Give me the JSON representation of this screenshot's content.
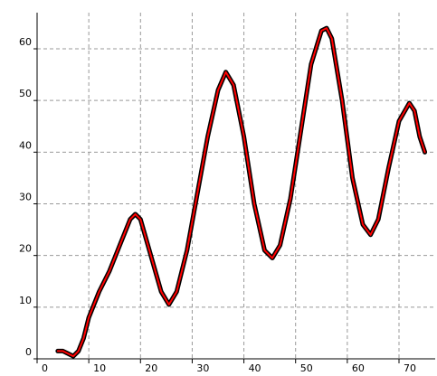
{
  "chart_data": {
    "type": "line",
    "x": [
      4,
      5,
      6,
      7,
      8,
      9,
      10,
      12,
      14,
      16,
      18,
      19,
      20,
      22,
      24,
      25.5,
      27,
      29,
      31,
      33,
      35,
      36.5,
      38,
      40,
      42,
      44,
      45.5,
      47,
      49,
      51,
      53,
      55,
      56,
      57,
      59,
      61,
      63,
      64.5,
      66,
      68,
      70,
      72,
      73,
      74,
      75
    ],
    "series": [
      {
        "color": "#000000",
        "values": [
          1.5,
          1.5,
          1,
          0.5,
          1.5,
          4,
          8,
          13,
          17,
          22,
          27,
          28,
          27,
          20,
          13,
          10.5,
          13,
          21,
          32,
          43,
          52,
          55.5,
          53,
          43,
          30,
          21,
          19.5,
          22,
          31,
          44,
          57,
          63.5,
          64,
          62,
          50,
          35,
          26,
          24,
          27,
          37,
          46,
          49.5,
          48,
          43,
          40
        ]
      },
      {
        "color": "#ff0000",
        "values": [
          1.5,
          1.5,
          1,
          0.5,
          1.5,
          4,
          8,
          13,
          17,
          22,
          27,
          28,
          27,
          20,
          13,
          10.5,
          13,
          21,
          32,
          43,
          52,
          55.5,
          53,
          43,
          30,
          21,
          19.5,
          22,
          31,
          44,
          57,
          63.5,
          64,
          62,
          50,
          35,
          26,
          24,
          27,
          37,
          46,
          49.5,
          48,
          43,
          40
        ]
      }
    ],
    "xlim": [
      0,
      77
    ],
    "ylim": [
      0,
      67
    ],
    "xticks": [
      0,
      10,
      20,
      30,
      40,
      50,
      60,
      70
    ],
    "yticks": [
      0,
      10,
      20,
      30,
      40,
      50,
      60
    ],
    "grid": true
  }
}
